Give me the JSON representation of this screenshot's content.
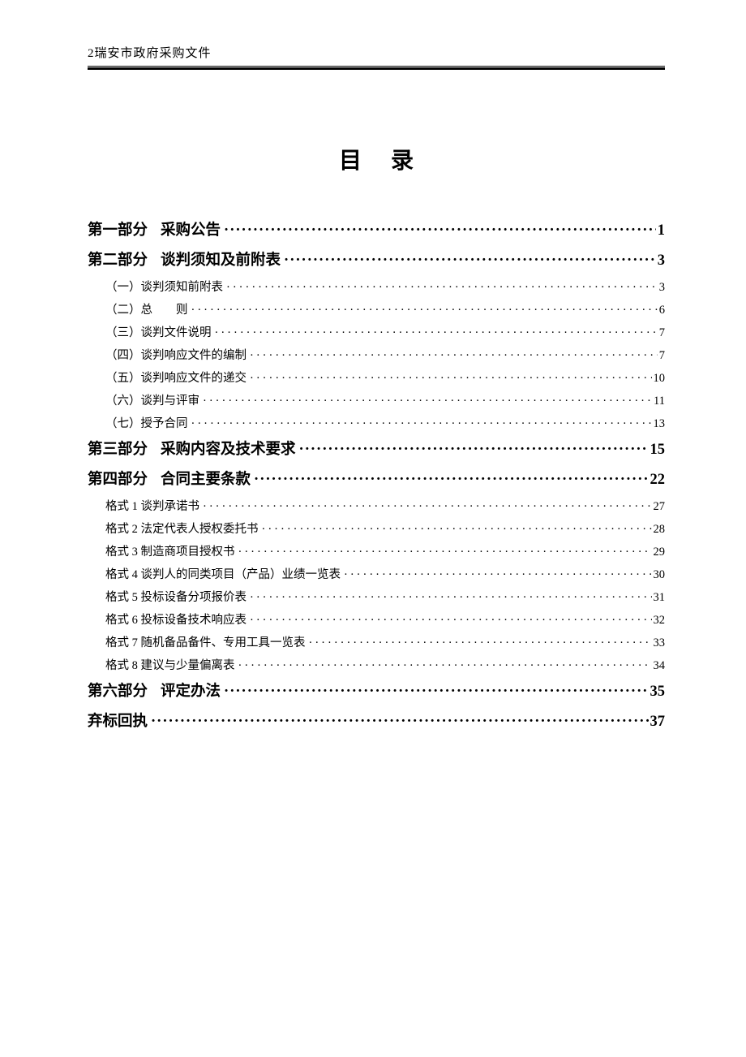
{
  "header": {
    "page_marker": "2",
    "text": "瑞安市政府采购文件"
  },
  "title": "目录",
  "toc": {
    "items": [
      {
        "level": 1,
        "part": "第一部分",
        "label": "采购公告",
        "page": "1"
      },
      {
        "level": 1,
        "part": "第二部分",
        "label": "谈判须知及前附表",
        "page": "3"
      },
      {
        "level": 2,
        "label": "（一）谈判须知前附表",
        "page": "3"
      },
      {
        "level": 2,
        "label": "（二）总　　则",
        "page": "6"
      },
      {
        "level": 2,
        "label": "（三）谈判文件说明",
        "page": "7"
      },
      {
        "level": 2,
        "label": "（四）谈判响应文件的编制",
        "page": "7"
      },
      {
        "level": 2,
        "label": "（五）谈判响应文件的递交",
        "page": "10"
      },
      {
        "level": 2,
        "label": "（六）谈判与评审",
        "page": "11"
      },
      {
        "level": 2,
        "label": "（七）授予合同",
        "page": "13"
      },
      {
        "level": 1,
        "part": "第三部分",
        "label": "采购内容及技术要求",
        "page": "15"
      },
      {
        "level": 1,
        "part": "第四部分",
        "label": "合同主要条款",
        "page": "22"
      },
      {
        "level": 2,
        "label": "格式 1 谈判承诺书",
        "page": "27"
      },
      {
        "level": 2,
        "label": "格式 2 法定代表人授权委托书",
        "page": "28"
      },
      {
        "level": 2,
        "label": "格式 3 制造商项目授权书",
        "page": "29"
      },
      {
        "level": 2,
        "label": "格式 4 谈判人的同类项目（产品）业绩一览表",
        "page": "30"
      },
      {
        "level": 2,
        "label": "格式 5 投标设备分项报价表",
        "page": "31"
      },
      {
        "level": 2,
        "label": "格式 6 投标设备技术响应表",
        "page": "32"
      },
      {
        "level": 2,
        "label": "格式 7 随机备品备件、专用工具一览表",
        "page": "33"
      },
      {
        "level": 2,
        "label": "格式 8 建议与少量偏离表",
        "page": "34"
      },
      {
        "level": 1,
        "part": "第六部分",
        "label": "评定办法",
        "page": "35"
      },
      {
        "level": 1,
        "part": "",
        "label": "弃标回执",
        "page": "37"
      }
    ]
  },
  "colors": {
    "text": "#000000",
    "background": "#ffffff"
  },
  "typography": {
    "title_fontsize_pt": 21,
    "level1_fontsize_pt": 14,
    "level2_fontsize_pt": 11,
    "font_family": "SimSun"
  }
}
